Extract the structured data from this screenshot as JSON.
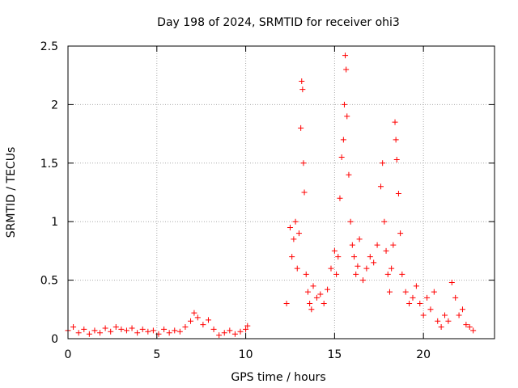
{
  "chart_data": {
    "type": "scatter",
    "title": "Day 198 of 2024, SRMTID for receiver ohi3",
    "xlabel": "GPS time / hours",
    "ylabel": "SRMTID / TECUs",
    "xlim": [
      0,
      24
    ],
    "ylim": [
      0,
      2.5
    ],
    "xticks": [
      0,
      5,
      10,
      15,
      20
    ],
    "xtick_labels": [
      "0",
      "5",
      "10",
      "15",
      "20"
    ],
    "yticks": [
      0,
      0.5,
      1,
      1.5,
      2,
      2.5
    ],
    "ytick_labels": [
      "0",
      "0.5",
      "1",
      "1.5",
      "2",
      "2.5"
    ],
    "grid": true,
    "marker": "+",
    "color": "#ff0000",
    "series": [
      {
        "name": "SRMTID",
        "x": [
          0.0,
          0.3,
          0.6,
          0.9,
          1.2,
          1.5,
          1.8,
          2.1,
          2.4,
          2.7,
          3.0,
          3.3,
          3.6,
          3.9,
          4.2,
          4.5,
          4.8,
          5.1,
          5.4,
          5.7,
          6.0,
          6.3,
          6.6,
          6.9,
          7.1,
          7.3,
          7.6,
          7.9,
          8.2,
          8.5,
          8.8,
          9.1,
          9.4,
          9.7,
          10.0,
          10.1,
          12.3,
          12.5,
          12.6,
          12.7,
          12.8,
          12.9,
          13.0,
          13.1,
          13.15,
          13.2,
          13.25,
          13.3,
          13.4,
          13.5,
          13.6,
          13.7,
          13.8,
          14.0,
          14.2,
          14.4,
          14.6,
          14.8,
          15.0,
          15.1,
          15.2,
          15.3,
          15.4,
          15.5,
          15.55,
          15.6,
          15.65,
          15.7,
          15.8,
          15.9,
          16.0,
          16.1,
          16.2,
          16.3,
          16.4,
          16.6,
          16.8,
          17.0,
          17.2,
          17.4,
          17.6,
          17.7,
          17.8,
          17.9,
          18.0,
          18.1,
          18.2,
          18.3,
          18.4,
          18.45,
          18.5,
          18.6,
          18.7,
          18.8,
          19.0,
          19.2,
          19.4,
          19.6,
          19.8,
          20.0,
          20.2,
          20.4,
          20.6,
          20.8,
          21.0,
          21.2,
          21.4,
          21.6,
          21.8,
          22.0,
          22.2,
          22.4,
          22.6,
          22.8
        ],
        "y": [
          0.07,
          0.1,
          0.05,
          0.08,
          0.04,
          0.07,
          0.05,
          0.09,
          0.06,
          0.1,
          0.08,
          0.07,
          0.09,
          0.05,
          0.08,
          0.06,
          0.07,
          0.04,
          0.08,
          0.05,
          0.07,
          0.06,
          0.1,
          0.15,
          0.22,
          0.18,
          0.12,
          0.16,
          0.08,
          0.03,
          0.05,
          0.07,
          0.04,
          0.06,
          0.08,
          0.11,
          0.3,
          0.95,
          0.7,
          0.85,
          1.0,
          0.6,
          0.9,
          1.8,
          2.2,
          2.13,
          1.5,
          1.25,
          0.55,
          0.4,
          0.3,
          0.25,
          0.45,
          0.35,
          0.38,
          0.3,
          0.42,
          0.6,
          0.75,
          0.55,
          0.7,
          1.2,
          1.55,
          1.7,
          2.0,
          2.42,
          2.3,
          1.9,
          1.4,
          1.0,
          0.8,
          0.7,
          0.55,
          0.62,
          0.85,
          0.5,
          0.6,
          0.7,
          0.65,
          0.8,
          1.3,
          1.5,
          1.0,
          0.75,
          0.55,
          0.4,
          0.6,
          0.8,
          1.85,
          1.7,
          1.53,
          1.24,
          0.9,
          0.55,
          0.4,
          0.3,
          0.35,
          0.45,
          0.3,
          0.2,
          0.35,
          0.25,
          0.4,
          0.15,
          0.1,
          0.2,
          0.15,
          0.48,
          0.35,
          0.2,
          0.25,
          0.12,
          0.1,
          0.07
        ]
      }
    ]
  }
}
